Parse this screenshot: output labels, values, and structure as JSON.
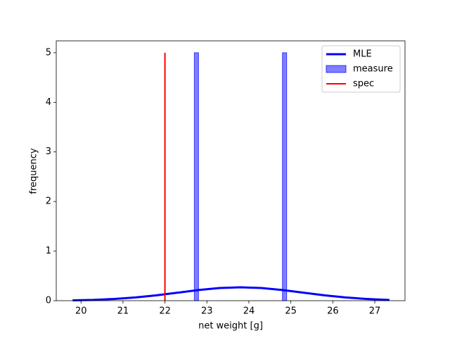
{
  "chart_data": {
    "type": "histogram",
    "xlabel": "net weight [g]",
    "ylabel": "frequency",
    "xlim": [
      19.41,
      27.72
    ],
    "ylim": [
      0,
      5.24
    ],
    "xticks": [
      20,
      21,
      22,
      23,
      24,
      25,
      26,
      27
    ],
    "yticks": [
      0,
      1,
      2,
      3,
      4,
      5
    ],
    "legend": "upper right",
    "series": [
      {
        "name": "MLE",
        "kind": "line",
        "color": "#0000ff",
        "x": [
          19.8,
          20.3,
          20.8,
          21.3,
          21.8,
          22.3,
          22.8,
          23.3,
          23.8,
          24.3,
          24.8,
          25.3,
          25.8,
          26.3,
          26.8,
          27.35
        ],
        "values": [
          0.007,
          0.016,
          0.035,
          0.065,
          0.108,
          0.161,
          0.215,
          0.255,
          0.27,
          0.255,
          0.215,
          0.161,
          0.108,
          0.065,
          0.035,
          0.015
        ]
      },
      {
        "name": "measure",
        "kind": "histogram",
        "color": "#0000ff",
        "opacity": 0.5,
        "bins": [
          22.7,
          22.8,
          22.9,
          23.0,
          23.1,
          23.2,
          23.3,
          23.4,
          23.5,
          23.6,
          23.7,
          23.8,
          23.9,
          24.0,
          24.1,
          24.2,
          24.3,
          24.4,
          24.5,
          24.6,
          24.7,
          24.8,
          24.9
        ],
        "values": [
          5,
          0,
          0,
          0,
          0,
          0,
          0,
          0,
          0,
          0,
          0,
          0,
          0,
          0,
          0,
          0,
          0,
          0,
          0,
          0,
          0,
          5
        ]
      },
      {
        "name": "spec",
        "kind": "vline",
        "color": "#ff0000",
        "x": [
          22,
          22
        ],
        "values": [
          0,
          5
        ]
      }
    ]
  }
}
